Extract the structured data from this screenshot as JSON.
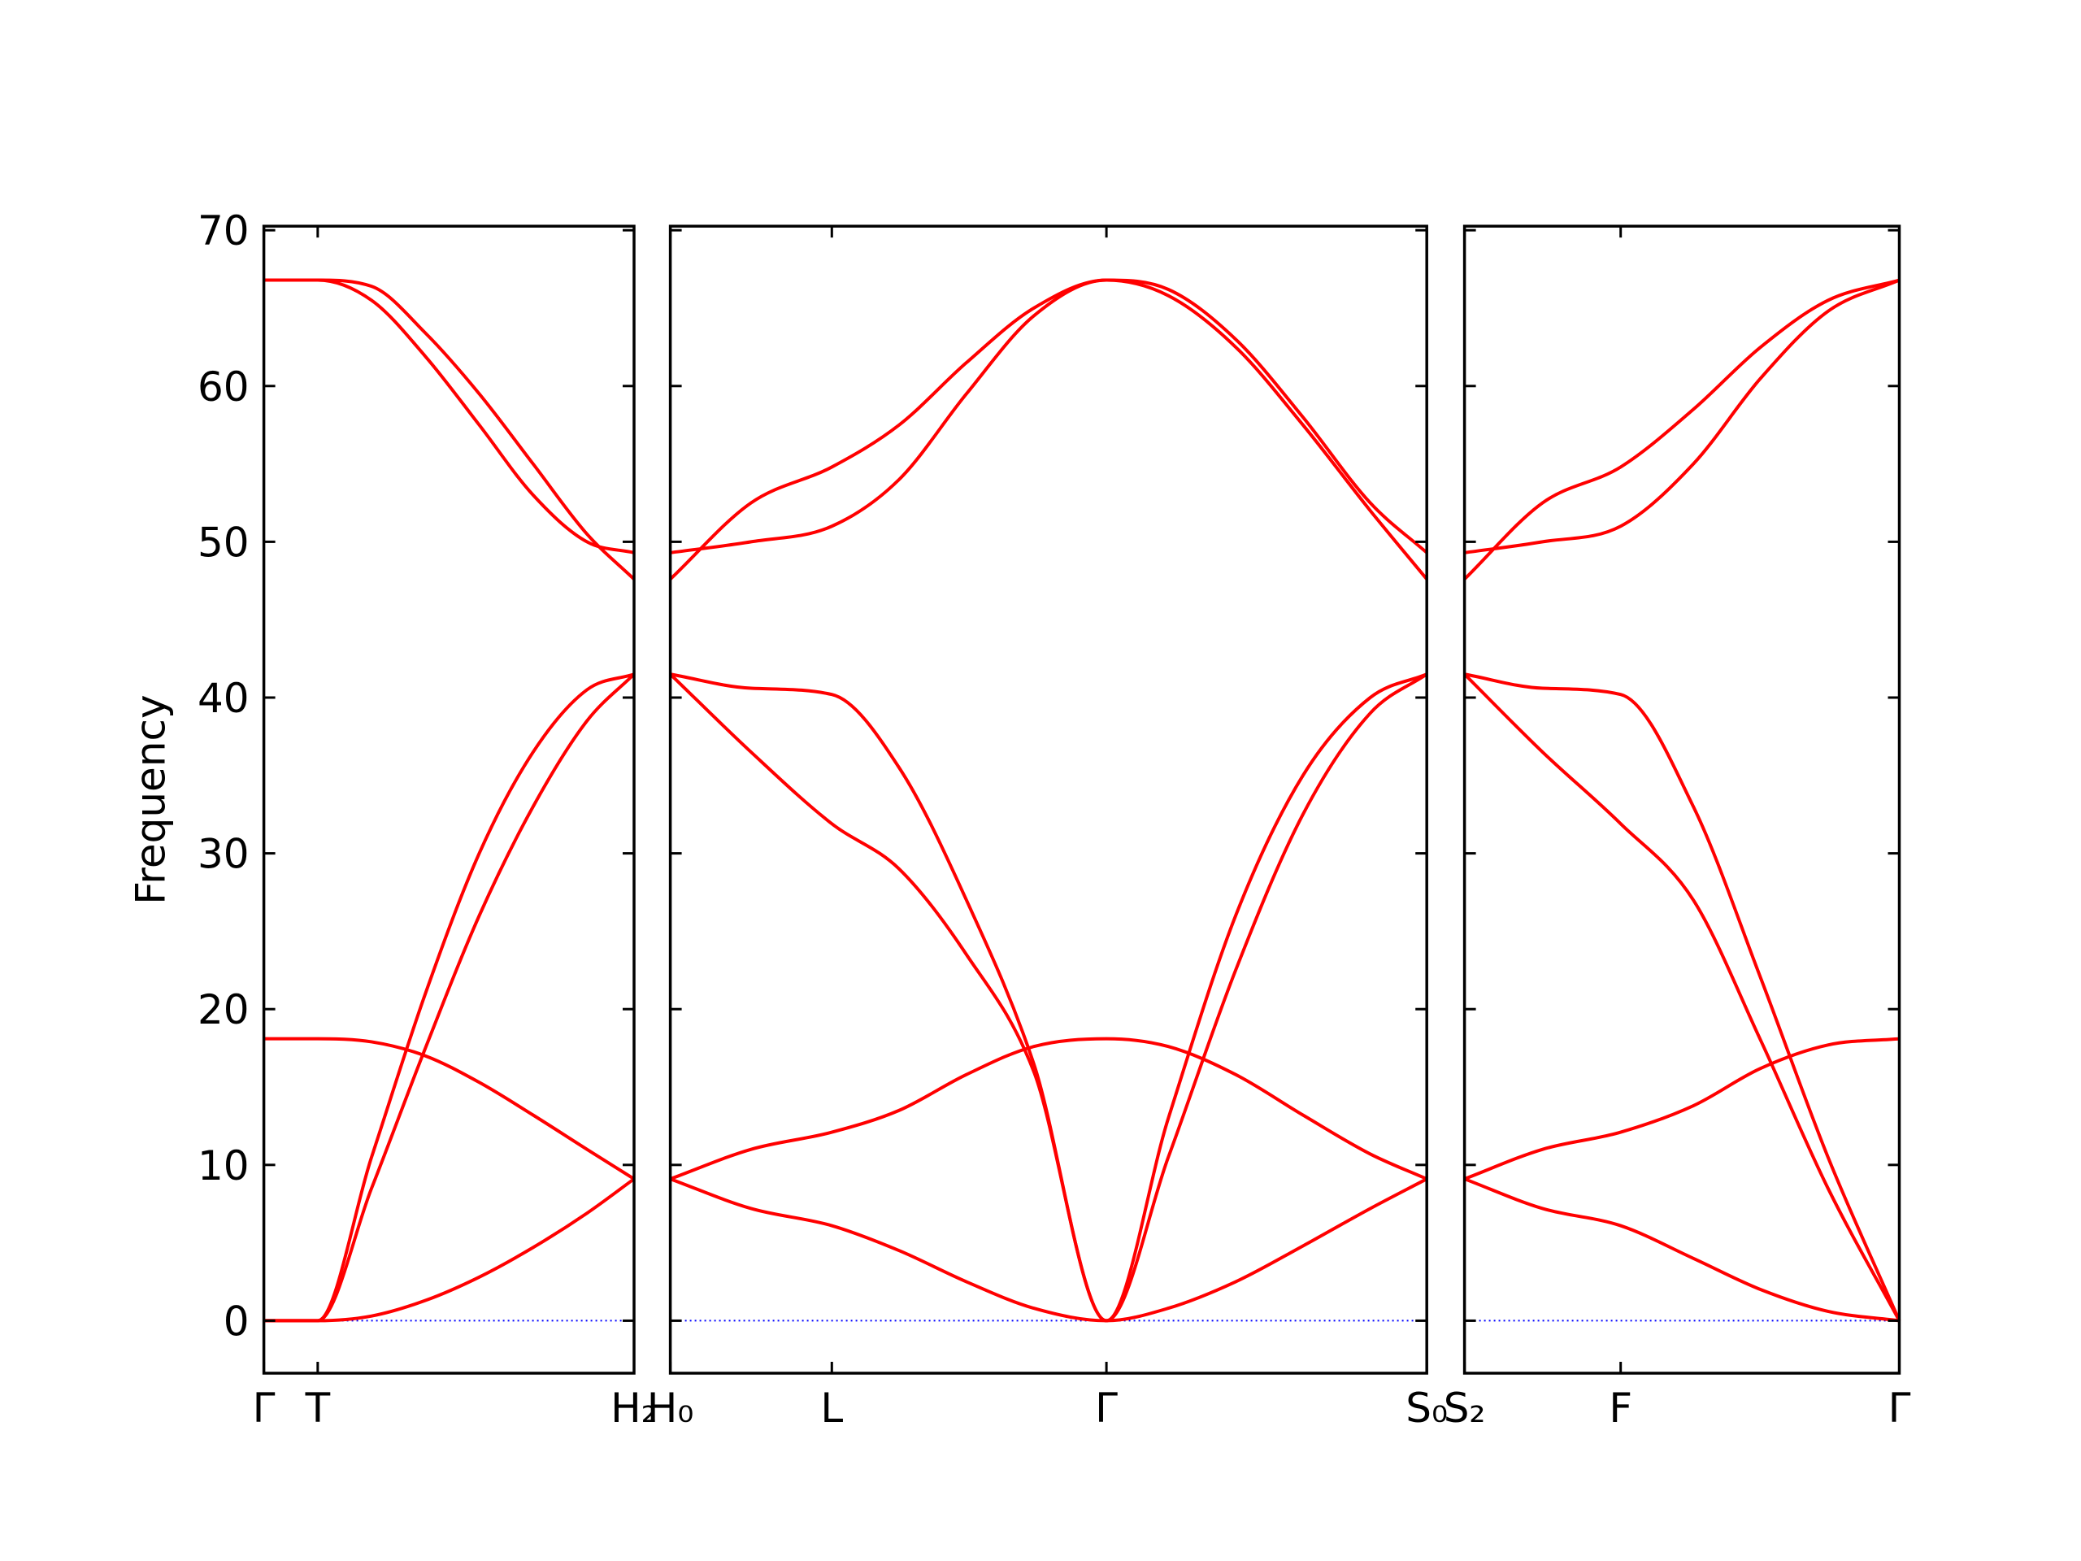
{
  "chart_data": [
    {
      "type": "line",
      "ylabel": "Frequency",
      "x": [
        0,
        0.4,
        0.8,
        1.2,
        1.6,
        2.0,
        2.4,
        2.75
      ],
      "xlim": [
        0,
        2.75
      ],
      "xticks": [
        {
          "value": 0,
          "label": "Γ"
        },
        {
          "value": 0.4,
          "label": "T"
        },
        {
          "value": 2.75,
          "label": "H₂"
        }
      ],
      "ylim": [
        -3.37,
        70.26
      ],
      "yticks": [
        0,
        10,
        20,
        30,
        40,
        50,
        60,
        70
      ],
      "ytick_labels": true,
      "hline": 0,
      "hline_color": "#0000ff",
      "series": [
        {
          "color": "#ff0000",
          "values": [
            66.8,
            66.8,
            65.5,
            61.9,
            57.5,
            53.0,
            50.0,
            49.3
          ]
        },
        {
          "color": "#ff0000",
          "values": [
            66.8,
            66.8,
            66.4,
            63.4,
            59.5,
            55.0,
            50.5,
            47.6
          ]
        },
        {
          "color": "#ff0000",
          "values": [
            0,
            0,
            10.5,
            21,
            30,
            36.5,
            40.5,
            41.5
          ]
        },
        {
          "color": "#ff0000",
          "values": [
            0,
            0,
            8.5,
            17.5,
            26,
            33,
            38.5,
            41.5
          ]
        },
        {
          "color": "#ff0000",
          "values": [
            18.1,
            18.1,
            17.9,
            17.0,
            15.3,
            13.2,
            11.0,
            9.1
          ]
        },
        {
          "color": "#ff0000",
          "values": [
            0,
            0,
            0.3,
            1.3,
            2.8,
            4.7,
            6.9,
            9.1
          ]
        }
      ]
    },
    {
      "type": "line",
      "x": [
        0,
        0.6,
        1.2,
        1.7,
        2.2,
        2.7,
        3.24,
        3.7,
        4.2,
        4.7,
        5.2,
        5.62
      ],
      "xlim": [
        0,
        5.62
      ],
      "xticks": [
        {
          "value": 0,
          "label": "H₀"
        },
        {
          "value": 1.2,
          "label": "L"
        },
        {
          "value": 3.24,
          "label": "Γ"
        },
        {
          "value": 5.62,
          "label": "S₀"
        }
      ],
      "ylim": [
        -3.37,
        70.26
      ],
      "yticks": [
        0,
        10,
        20,
        30,
        40,
        50,
        60,
        70
      ],
      "ytick_labels": false,
      "hline": 0,
      "hline_color": "#0000ff",
      "series": [
        {
          "color": "#ff0000",
          "values": [
            47.6,
            52.5,
            54.8,
            57.5,
            61.5,
            65.0,
            66.8,
            65.8,
            62.5,
            57.5,
            52.0,
            47.6
          ]
        },
        {
          "color": "#ff0000",
          "values": [
            49.3,
            50.0,
            51.0,
            54.0,
            59.5,
            64.5,
            66.8,
            66.2,
            63.0,
            58.0,
            52.5,
            49.3
          ]
        },
        {
          "color": "#ff0000",
          "values": [
            41.5,
            40.6,
            40.2,
            35.5,
            27.0,
            16.5,
            0,
            13.0,
            26.0,
            35.0,
            40.0,
            41.5
          ]
        },
        {
          "color": "#ff0000",
          "values": [
            41.5,
            36.5,
            31.9,
            29.0,
            23.5,
            16.0,
            0,
            10.5,
            22.5,
            32.5,
            39.0,
            41.5
          ]
        },
        {
          "color": "#ff0000",
          "values": [
            9.1,
            11.0,
            12.1,
            13.5,
            15.8,
            17.6,
            18.1,
            17.6,
            15.8,
            13.2,
            10.7,
            9.1
          ]
        },
        {
          "color": "#ff0000",
          "values": [
            9.1,
            7.2,
            6.1,
            4.5,
            2.5,
            0.8,
            0,
            0.8,
            2.5,
            4.8,
            7.2,
            9.1
          ]
        }
      ]
    },
    {
      "type": "line",
      "x": [
        0,
        0.58,
        1.16,
        1.7,
        2.2,
        2.7,
        3.23
      ],
      "xlim": [
        0,
        3.23
      ],
      "xticks": [
        {
          "value": 0,
          "label": "S₂"
        },
        {
          "value": 1.16,
          "label": "F"
        },
        {
          "value": 3.23,
          "label": "Γ"
        }
      ],
      "ylim": [
        -3.37,
        70.26
      ],
      "yticks": [
        0,
        10,
        20,
        30,
        40,
        50,
        60,
        70
      ],
      "ytick_labels": false,
      "hline": 0,
      "hline_color": "#0000ff",
      "series": [
        {
          "color": "#ff0000",
          "values": [
            47.6,
            52.5,
            54.8,
            58.5,
            62.5,
            65.5,
            66.8
          ]
        },
        {
          "color": "#ff0000",
          "values": [
            49.3,
            50.0,
            51.0,
            55.0,
            60.5,
            64.8,
            66.8
          ]
        },
        {
          "color": "#ff0000",
          "values": [
            41.5,
            40.6,
            40.2,
            33.0,
            22.0,
            10.5,
            0
          ]
        },
        {
          "color": "#ff0000",
          "values": [
            41.5,
            36.5,
            31.9,
            27.0,
            18.0,
            8.5,
            0
          ]
        },
        {
          "color": "#ff0000",
          "values": [
            9.1,
            11.0,
            12.1,
            13.8,
            16.2,
            17.7,
            18.1
          ]
        },
        {
          "color": "#ff0000",
          "values": [
            9.1,
            7.2,
            6.1,
            4.0,
            2.0,
            0.6,
            0
          ]
        }
      ]
    }
  ]
}
